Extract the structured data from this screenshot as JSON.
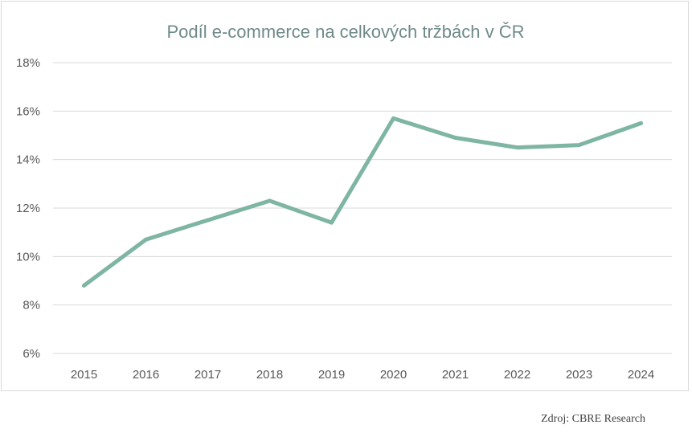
{
  "chart_data": {
    "type": "line",
    "title": "Podíl e-commerce na celkových tržbách v ČR",
    "xlabel": "",
    "ylabel": "",
    "categories": [
      "2015",
      "2016",
      "2017",
      "2018",
      "2019",
      "2020",
      "2021",
      "2022",
      "2023",
      "2024"
    ],
    "series": [
      {
        "values": [
          8.8,
          10.7,
          11.5,
          12.3,
          11.4,
          15.7,
          14.9,
          14.5,
          14.6,
          15.5
        ],
        "color": "#7fb5a3"
      }
    ],
    "ylim": [
      6,
      18
    ],
    "y_ticks": [
      {
        "value": 6,
        "label": "6%"
      },
      {
        "value": 8,
        "label": "8%"
      },
      {
        "value": 10,
        "label": "10%"
      },
      {
        "value": 12,
        "label": "12%"
      },
      {
        "value": 14,
        "label": "14%"
      },
      {
        "value": 16,
        "label": "16%"
      },
      {
        "value": 18,
        "label": "18%"
      }
    ],
    "grid": true,
    "legend": "none"
  },
  "source": "Zdroj: CBRE Research"
}
